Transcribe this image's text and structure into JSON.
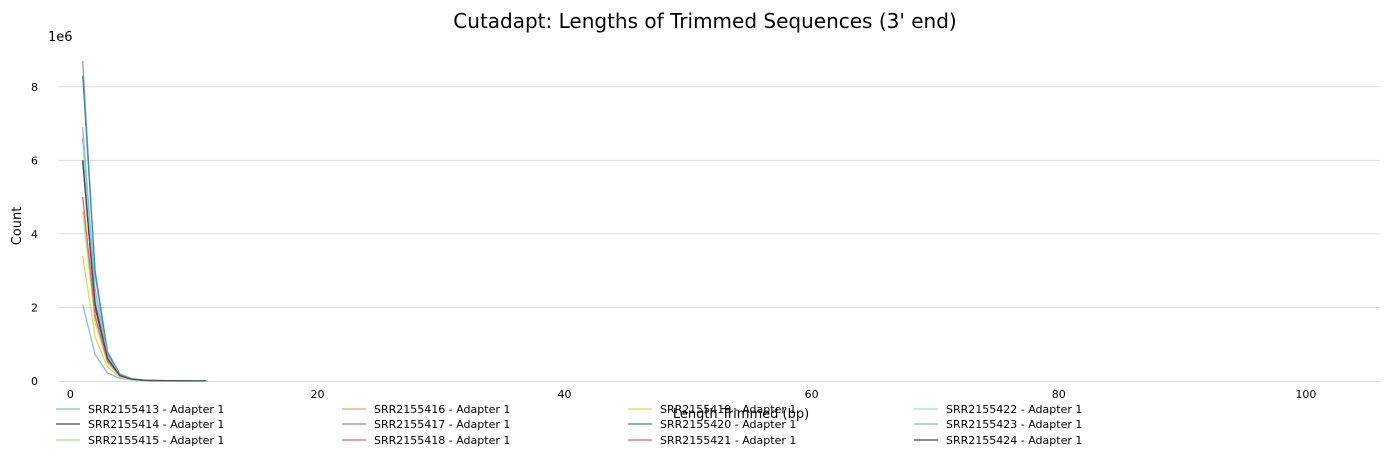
{
  "chart_data": {
    "type": "line",
    "title": "Cutadapt: Lengths of Trimmed Sequences (3' end)",
    "xlabel": "Length Trimmed (bp)",
    "ylabel": "Count",
    "y_scale_label": "1e6",
    "xlim": [
      -1,
      106
    ],
    "ylim": [
      0,
      9
    ],
    "x_ticks": [
      0,
      20,
      40,
      60,
      80,
      100
    ],
    "y_ticks": [
      0,
      2,
      4,
      6,
      8
    ],
    "grid": "horizontal",
    "legend_position": "bottom",
    "x": [
      1,
      2,
      3,
      4,
      5,
      6,
      7,
      8,
      9,
      10,
      11
    ],
    "series": [
      {
        "name": "SRR2155413 - Adapter 1",
        "color": "#7cb5ec",
        "values": [
          2.08,
          0.72,
          0.22,
          0.07,
          0.03,
          0.015,
          0.01,
          0.008,
          0.005,
          0.003,
          0.002
        ]
      },
      {
        "name": "SRR2155414 - Adapter 1",
        "color": "#434348",
        "values": [
          6.0,
          2.0,
          0.6,
          0.15,
          0.05,
          0.02,
          0.01,
          0.008,
          0.005,
          0.003,
          0.002
        ]
      },
      {
        "name": "SRR2155415 - Adapter 1",
        "color": "#90ed7d",
        "values": [
          4.6,
          1.6,
          0.5,
          0.13,
          0.04,
          0.02,
          0.01,
          0.008,
          0.005,
          0.003,
          0.002
        ]
      },
      {
        "name": "SRR2155416 - Adapter 1",
        "color": "#f7a35c",
        "values": [
          5.0,
          1.8,
          0.55,
          0.14,
          0.05,
          0.02,
          0.01,
          0.008,
          0.005,
          0.003,
          0.002
        ]
      },
      {
        "name": "SRR2155417 - Adapter 1",
        "color": "#8085e9",
        "values": [
          8.7,
          2.9,
          0.75,
          0.18,
          0.06,
          0.02,
          0.01,
          0.008,
          0.005,
          0.003,
          0.002
        ]
      },
      {
        "name": "SRR2155418 - Adapter 1",
        "color": "#f15c80",
        "values": [
          6.6,
          2.2,
          0.65,
          0.16,
          0.05,
          0.02,
          0.01,
          0.008,
          0.005,
          0.003,
          0.002
        ]
      },
      {
        "name": "SRR2155419 - Adapter 1",
        "color": "#e4d354",
        "values": [
          3.4,
          1.2,
          0.38,
          0.1,
          0.04,
          0.015,
          0.01,
          0.008,
          0.005,
          0.003,
          0.002
        ]
      },
      {
        "name": "SRR2155420 - Adapter 1",
        "color": "#2b908f",
        "values": [
          8.3,
          3.0,
          0.8,
          0.19,
          0.06,
          0.025,
          0.015,
          0.01,
          0.005,
          0.003,
          0.002
        ]
      },
      {
        "name": "SRR2155421 - Adapter 1",
        "color": "#f45b5b",
        "values": [
          5.0,
          1.75,
          0.55,
          0.14,
          0.05,
          0.02,
          0.01,
          0.008,
          0.005,
          0.003,
          0.002
        ]
      },
      {
        "name": "SRR2155422 - Adapter 1",
        "color": "#91e8e1",
        "values": [
          6.5,
          2.3,
          0.68,
          0.17,
          0.06,
          0.02,
          0.01,
          0.008,
          0.005,
          0.003,
          0.002
        ]
      },
      {
        "name": "SRR2155423 - Adapter 1",
        "color": "#7cb5ec",
        "values": [
          6.9,
          2.5,
          0.7,
          0.17,
          0.06,
          0.02,
          0.01,
          0.008,
          0.005,
          0.003,
          0.002
        ]
      },
      {
        "name": "SRR2155424 - Adapter 1",
        "color": "#434348",
        "values": [
          6.0,
          2.1,
          0.62,
          0.15,
          0.05,
          0.02,
          0.01,
          0.008,
          0.005,
          0.003,
          0.002
        ]
      }
    ]
  }
}
